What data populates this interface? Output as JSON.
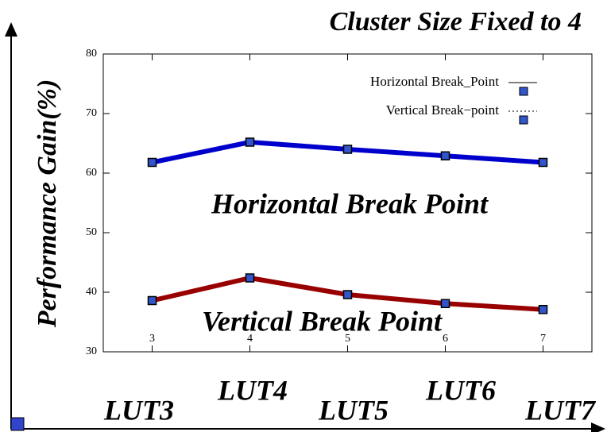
{
  "chart_data": {
    "type": "line",
    "title": "Cluster Size Fixed to 4",
    "ylabel": "Performance Gain(%)",
    "x": [
      3,
      4,
      5,
      6,
      7
    ],
    "series": [
      {
        "name": "Horizontal Break_Point",
        "color": "#0000cc",
        "values": [
          61.8,
          65.2,
          64.0,
          62.9,
          61.8
        ]
      },
      {
        "name": "Vertical Break−point",
        "color": "#990000",
        "values": [
          38.6,
          42.4,
          39.6,
          38.1,
          37.1
        ]
      }
    ],
    "xlim": [
      2.5,
      7.5
    ],
    "xticks": [
      3,
      4,
      5,
      6,
      7
    ],
    "ylim": [
      30,
      80
    ],
    "yticks": [
      30,
      40,
      50,
      60,
      70,
      80
    ],
    "legend": "upper right",
    "annotations": [
      "Horizontal Break Point",
      "Vertical Break Point"
    ],
    "group_labels": [
      "LUT3",
      "LUT4",
      "LUT5",
      "LUT6",
      "LUT7"
    ]
  }
}
